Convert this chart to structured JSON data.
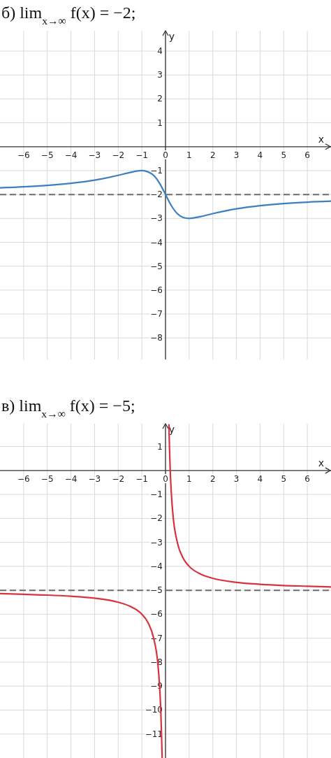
{
  "chart_data": [
    {
      "type": "line",
      "title": "б) lim$_{x→∞}$ f(x) = −2;",
      "xlabel": "x",
      "ylabel": "y",
      "xlim": [
        -7,
        7
      ],
      "ylim": [
        -8.9,
        4.85
      ],
      "xticks": [
        -6,
        -5,
        -4,
        -3,
        -2,
        -1,
        0,
        1,
        2,
        3,
        4,
        5,
        6
      ],
      "yticks": [
        -8,
        -7,
        -6,
        -5,
        -4,
        -3,
        -2,
        -1,
        1,
        2,
        3,
        4
      ],
      "grid": true,
      "marker": "none",
      "line_style": "solid",
      "series": [
        {
          "color": "#3d7fc1",
          "x": [
            -7,
            -6,
            -5,
            -4,
            -3,
            -2,
            -1.5,
            -1,
            -0.5,
            -0.25,
            0,
            0.25,
            0.5,
            0.75,
            1,
            1.5,
            2,
            3,
            4,
            5,
            6,
            7
          ],
          "values": [
            -1.72,
            -1.68,
            -1.62,
            -1.53,
            -1.4,
            -1.2,
            -1.08,
            -1,
            -1.2,
            -1.53,
            -2,
            -2.47,
            -2.8,
            -2.96,
            -3,
            -2.92,
            -2.8,
            -2.6,
            -2.47,
            -2.38,
            -2.32,
            -2.28
          ]
        }
      ],
      "ref_lines": [
        {
          "axis": "y",
          "value": -2,
          "color": "#6e6e6e",
          "line_style": "dashed"
        }
      ]
    },
    {
      "type": "line",
      "title": "в) lim$_{x→∞}$ f(x) = −5;",
      "xlabel": "x",
      "ylabel": "y",
      "xlim": [
        -7,
        7
      ],
      "ylim": [
        -12,
        1.95
      ],
      "xticks": [
        -6,
        -5,
        -4,
        -3,
        -2,
        -1,
        0,
        1,
        2,
        3,
        4,
        5,
        6
      ],
      "yticks": [
        -11,
        -10,
        -9,
        -8,
        -7,
        -6,
        -5,
        -4,
        -3,
        -2,
        -1,
        1
      ],
      "grid": true,
      "marker": "none",
      "line_style": "solid",
      "series": [
        {
          "color": "#d8323f",
          "x": [
            0.145,
            0.17,
            0.2,
            0.25,
            0.33,
            0.5,
            0.75,
            1,
            1.5,
            2,
            3,
            4,
            5,
            6,
            7
          ],
          "values": [
            1.9,
            0.9,
            0,
            -1,
            -2,
            -3,
            -3.67,
            -4,
            -4.33,
            -4.5,
            -4.67,
            -4.75,
            -4.8,
            -4.83,
            -4.86
          ]
        },
        {
          "color": "#d8323f",
          "x": [
            -7,
            -6,
            -5,
            -4,
            -3,
            -2,
            -1.5,
            -1,
            -0.75,
            -0.5,
            -0.33,
            -0.25,
            -0.2,
            -0.15,
            -0.14
          ],
          "values": [
            -5.14,
            -5.17,
            -5.2,
            -5.25,
            -5.33,
            -5.5,
            -5.67,
            -6,
            -6.33,
            -7,
            -8,
            -9,
            -10,
            -11.67,
            -12
          ]
        }
      ],
      "ref_lines": [
        {
          "axis": "y",
          "value": -5,
          "color": "#6e6e6e",
          "line_style": "dashed"
        }
      ]
    }
  ]
}
